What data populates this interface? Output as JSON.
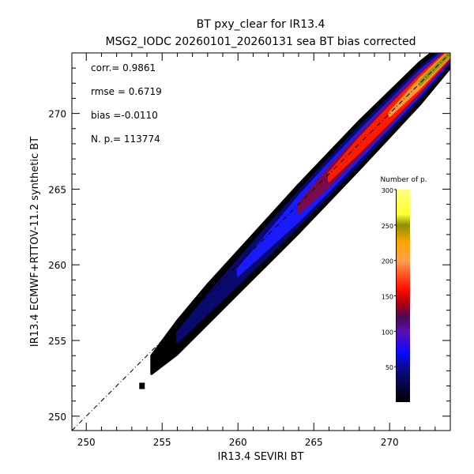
{
  "chart_data": {
    "type": "heatmap",
    "title": "BT pxy_clear for IR13.4",
    "subtitle": "MSG2_IODC 20260101_20260131 sea BT bias corrected",
    "xlabel": "IR13.4 SEVIRI BT",
    "ylabel": "IR13.4 ECMWF+RTTOV-11.2 synthetic BT",
    "xlim": [
      249.05,
      274.0
    ],
    "ylim": [
      249.05,
      274.0
    ],
    "xticks": [
      250,
      255,
      260,
      265,
      270
    ],
    "yticks": [
      250,
      255,
      260,
      265,
      270
    ],
    "xtick_labels": [
      "250",
      "255",
      "260",
      "265",
      "270"
    ],
    "ytick_labels": [
      "250",
      "255",
      "260",
      "265",
      "270"
    ],
    "stats": [
      {
        "label": "corr.= 0.9861"
      },
      {
        "label": "rmse = 0.6719"
      },
      {
        "label": "bias =-0.0110"
      },
      {
        "label": "N. p.=  113774"
      }
    ],
    "reference_line": "y = x",
    "density_band": {
      "x": [
        254.3,
        256,
        258,
        260,
        262,
        264,
        266,
        268,
        270,
        272,
        273.9
      ],
      "center_offset": [
        -0.9,
        -0.8,
        -0.6,
        -0.5,
        -0.4,
        -0.3,
        -0.2,
        -0.1,
        -0.05,
        0,
        0
      ],
      "levels": [
        {
          "count": 5,
          "color": "#000000",
          "half_width": [
            0.6,
            1.1,
            1.3,
            1.4,
            1.5,
            1.6,
            1.6,
            1.6,
            1.5,
            1.4,
            1.0
          ]
        },
        {
          "count": 40,
          "color": "#0a0a6e",
          "half_width": [
            0.0,
            0.3,
            0.6,
            0.8,
            1.0,
            1.1,
            1.2,
            1.2,
            1.1,
            1.0,
            0.7
          ]
        },
        {
          "count": 70,
          "color": "#1a1aff",
          "half_width": [
            0.0,
            0.0,
            0.0,
            0.2,
            0.5,
            0.8,
            0.9,
            0.9,
            0.85,
            0.8,
            0.5
          ]
        },
        {
          "count": 120,
          "color": "#7a0a4a",
          "half_width": [
            0.0,
            0.0,
            0.0,
            0.0,
            0.0,
            0.3,
            0.6,
            0.7,
            0.7,
            0.65,
            0.4
          ]
        },
        {
          "count": 160,
          "color": "#ff1a00",
          "half_width": [
            0.0,
            0.0,
            0.0,
            0.0,
            0.0,
            0.0,
            0.25,
            0.45,
            0.5,
            0.5,
            0.3
          ]
        },
        {
          "count": 220,
          "color": "#ff9a30",
          "half_width": [
            0.0,
            0.0,
            0.0,
            0.0,
            0.0,
            0.0,
            0.0,
            0.0,
            0.1,
            0.3,
            0.2
          ]
        },
        {
          "count": 250,
          "color": "#9a9a00",
          "half_width": [
            0.0,
            0.0,
            0.0,
            0.0,
            0.0,
            0.0,
            0.0,
            0.0,
            0.0,
            0.12,
            0.1
          ]
        }
      ],
      "outlier": {
        "x": 253.7,
        "y": 252.0
      }
    },
    "colorbar": {
      "title": "Number of p.",
      "range": [
        0,
        300
      ],
      "ticks": [
        50,
        100,
        150,
        200,
        250,
        300
      ],
      "tick_labels": [
        "50",
        "100",
        "150",
        "200",
        "250",
        "300"
      ],
      "stops": [
        {
          "v": 0,
          "c": "#000000"
        },
        {
          "v": 45,
          "c": "#0a0a80"
        },
        {
          "v": 70,
          "c": "#0a0aff"
        },
        {
          "v": 100,
          "c": "#5a10b0"
        },
        {
          "v": 120,
          "c": "#4a0a50"
        },
        {
          "v": 140,
          "c": "#b00010"
        },
        {
          "v": 160,
          "c": "#ff1000"
        },
        {
          "v": 200,
          "c": "#ffa050"
        },
        {
          "v": 225,
          "c": "#ffa500"
        },
        {
          "v": 250,
          "c": "#8c9000"
        },
        {
          "v": 265,
          "c": "#ffff30"
        },
        {
          "v": 300,
          "c": "#ffff80"
        }
      ]
    }
  }
}
